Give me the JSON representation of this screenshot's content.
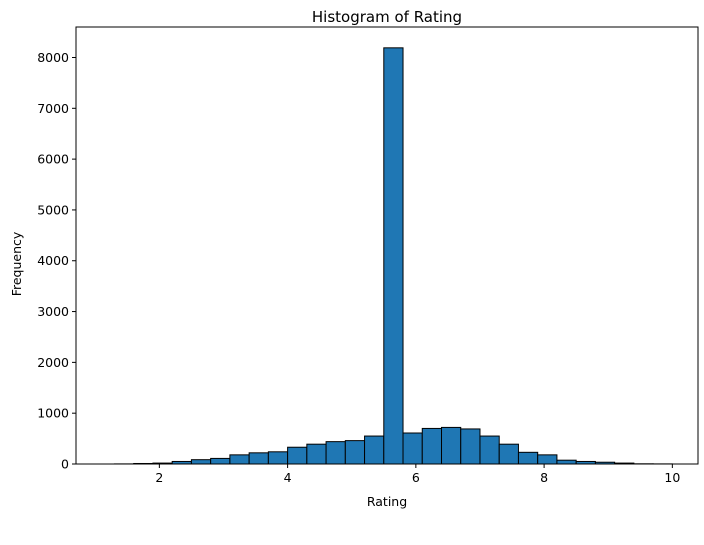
{
  "chart_data": {
    "type": "bar",
    "title": "Histogram of Rating",
    "xlabel": "Rating",
    "ylabel": "Frequency",
    "xlim": [
      0.7,
      10.4
    ],
    "ylim": [
      0,
      8600
    ],
    "xticks": [
      2,
      4,
      6,
      8,
      10
    ],
    "yticks": [
      0,
      1000,
      2000,
      3000,
      4000,
      5000,
      6000,
      7000,
      8000
    ],
    "grid": false,
    "bar_color": "#1f77b4",
    "edge_color": "#000000",
    "bins": [
      {
        "x0": 1.0,
        "x1": 1.3,
        "value": 0
      },
      {
        "x0": 1.3,
        "x1": 1.6,
        "value": 2
      },
      {
        "x0": 1.6,
        "x1": 1.9,
        "value": 10
      },
      {
        "x0": 1.9,
        "x1": 2.2,
        "value": 18
      },
      {
        "x0": 2.2,
        "x1": 2.5,
        "value": 50
      },
      {
        "x0": 2.5,
        "x1": 2.8,
        "value": 85
      },
      {
        "x0": 2.8,
        "x1": 3.1,
        "value": 110
      },
      {
        "x0": 3.1,
        "x1": 3.4,
        "value": 180
      },
      {
        "x0": 3.4,
        "x1": 3.7,
        "value": 220
      },
      {
        "x0": 3.7,
        "x1": 4.0,
        "value": 240
      },
      {
        "x0": 4.0,
        "x1": 4.3,
        "value": 330
      },
      {
        "x0": 4.3,
        "x1": 4.6,
        "value": 390
      },
      {
        "x0": 4.6,
        "x1": 4.9,
        "value": 440
      },
      {
        "x0": 4.9,
        "x1": 5.2,
        "value": 460
      },
      {
        "x0": 5.2,
        "x1": 5.5,
        "value": 550
      },
      {
        "x0": 5.5,
        "x1": 5.8,
        "value": 8190
      },
      {
        "x0": 5.8,
        "x1": 6.1,
        "value": 610
      },
      {
        "x0": 6.1,
        "x1": 6.4,
        "value": 700
      },
      {
        "x0": 6.4,
        "x1": 6.7,
        "value": 720
      },
      {
        "x0": 6.7,
        "x1": 7.0,
        "value": 690
      },
      {
        "x0": 7.0,
        "x1": 7.3,
        "value": 550
      },
      {
        "x0": 7.3,
        "x1": 7.6,
        "value": 390
      },
      {
        "x0": 7.6,
        "x1": 7.9,
        "value": 230
      },
      {
        "x0": 7.9,
        "x1": 8.2,
        "value": 180
      },
      {
        "x0": 8.2,
        "x1": 8.5,
        "value": 75
      },
      {
        "x0": 8.5,
        "x1": 8.8,
        "value": 50
      },
      {
        "x0": 8.8,
        "x1": 9.1,
        "value": 35
      },
      {
        "x0": 9.1,
        "x1": 9.4,
        "value": 18
      },
      {
        "x0": 9.4,
        "x1": 9.7,
        "value": 4
      },
      {
        "x0": 9.7,
        "x1": 10.0,
        "value": 2
      }
    ]
  }
}
